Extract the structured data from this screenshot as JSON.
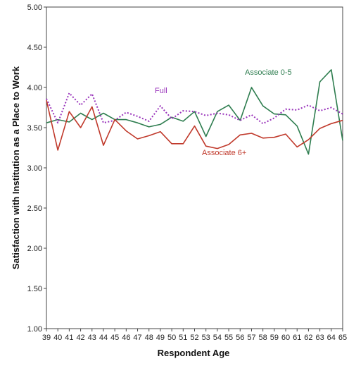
{
  "chart_data": {
    "type": "line",
    "xlabel": "Respondent Age",
    "ylabel": "Satisfaction with Institution as a Place to Work",
    "ylim": [
      1.0,
      5.0
    ],
    "y_ticks": [
      "1.00",
      "1.50",
      "2.00",
      "2.50",
      "3.00",
      "3.50",
      "4.00",
      "4.50",
      "5.00"
    ],
    "x": [
      39,
      40,
      41,
      42,
      43,
      44,
      45,
      46,
      47,
      48,
      49,
      50,
      51,
      52,
      53,
      54,
      55,
      56,
      57,
      58,
      59,
      60,
      61,
      62,
      63,
      64,
      65
    ],
    "x_tick_labels": [
      "39",
      "40",
      "41",
      "42",
      "43",
      "44",
      "45",
      "46",
      "47",
      "48",
      "49",
      "50",
      "51",
      "52",
      "53",
      "54",
      "55",
      "56",
      "57",
      "58",
      "59",
      "60",
      "61",
      "62",
      "63",
      "64",
      "65"
    ],
    "grid": false,
    "series": [
      {
        "name": "Associate 0-5",
        "color": "#2e7d4f",
        "style": "solid",
        "values": [
          3.56,
          3.6,
          3.57,
          3.68,
          3.6,
          3.68,
          3.6,
          3.6,
          3.56,
          3.51,
          3.54,
          3.63,
          3.58,
          3.7,
          3.39,
          3.7,
          3.78,
          3.59,
          4.0,
          3.77,
          3.67,
          3.66,
          3.52,
          3.17,
          4.07,
          4.22,
          3.34
        ]
      },
      {
        "name": "Full",
        "color": "#9933bb",
        "style": "dotted",
        "values": [
          3.86,
          3.56,
          3.93,
          3.78,
          3.92,
          3.56,
          3.59,
          3.69,
          3.64,
          3.58,
          3.77,
          3.61,
          3.71,
          3.7,
          3.65,
          3.68,
          3.66,
          3.59,
          3.66,
          3.55,
          3.62,
          3.73,
          3.72,
          3.78,
          3.71,
          3.75,
          3.67
        ]
      },
      {
        "name": "Associate 6+",
        "color": "#c0392b",
        "style": "solid",
        "values": [
          3.84,
          3.22,
          3.7,
          3.5,
          3.76,
          3.28,
          3.6,
          3.46,
          3.36,
          3.4,
          3.45,
          3.3,
          3.3,
          3.52,
          3.27,
          3.24,
          3.29,
          3.41,
          3.43,
          3.37,
          3.38,
          3.42,
          3.26,
          3.35,
          3.49,
          3.55,
          3.59
        ]
      }
    ]
  }
}
